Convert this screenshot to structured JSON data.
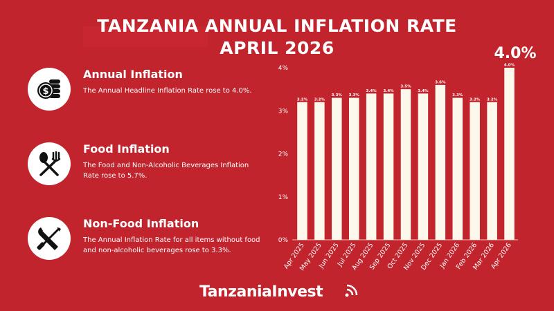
{
  "title": {
    "line1": "TANZANIA ANNUAL INFLATION RATE",
    "line2": "APRIL 2026"
  },
  "highlight": "4.0%",
  "sections": [
    {
      "heading": "Annual Inflation",
      "text": "The Annual Headline Inflation Rate rose to 4.0%.",
      "icon": "coins-dollar-icon"
    },
    {
      "heading": "Food Inflation",
      "text": "The Food and Non-Alcoholic Beverages Inflation Rate rose to 5.7%.",
      "icon": "spoon-fork-icon"
    },
    {
      "heading": "Non-Food Inflation",
      "text": "The Annual Inflation Rate for all items without food and non-alcoholic beverages rose to 3.3%.",
      "icon": "wrench-screwdriver-icon"
    }
  ],
  "brand": "TanzaniaInvest",
  "colors": {
    "background": "#c1242c",
    "bars": "#fdf8ec",
    "text": "#ffffff"
  },
  "chart_data": {
    "type": "bar",
    "categories": [
      "Apr 2025",
      "May 2025",
      "Jun 2025",
      "Jul 2025",
      "Aug 2025",
      "Sep 2025",
      "Oct 2025",
      "Nov 2025",
      "Dec 2025",
      "Jan 2026",
      "Feb 2026",
      "Mar 2026",
      "Apr 2026"
    ],
    "values": [
      3.2,
      3.2,
      3.3,
      3.3,
      3.4,
      3.4,
      3.5,
      3.4,
      3.6,
      3.3,
      3.2,
      3.2,
      4.0
    ],
    "data_labels": [
      "3.2%",
      "3.2%",
      "3.3%",
      "3.3%",
      "3.4%",
      "3.4%",
      "3.5%",
      "3.4%",
      "3.6%",
      "3.3%",
      "3.2%",
      "3.2%",
      "4.0%"
    ],
    "yticks": [
      0,
      1,
      2,
      3,
      4
    ],
    "ytick_labels": [
      "0%",
      "1%",
      "2%",
      "3%",
      "4%"
    ],
    "ylim": [
      0,
      4
    ],
    "xlabel": "",
    "ylabel": "",
    "grid": false
  }
}
